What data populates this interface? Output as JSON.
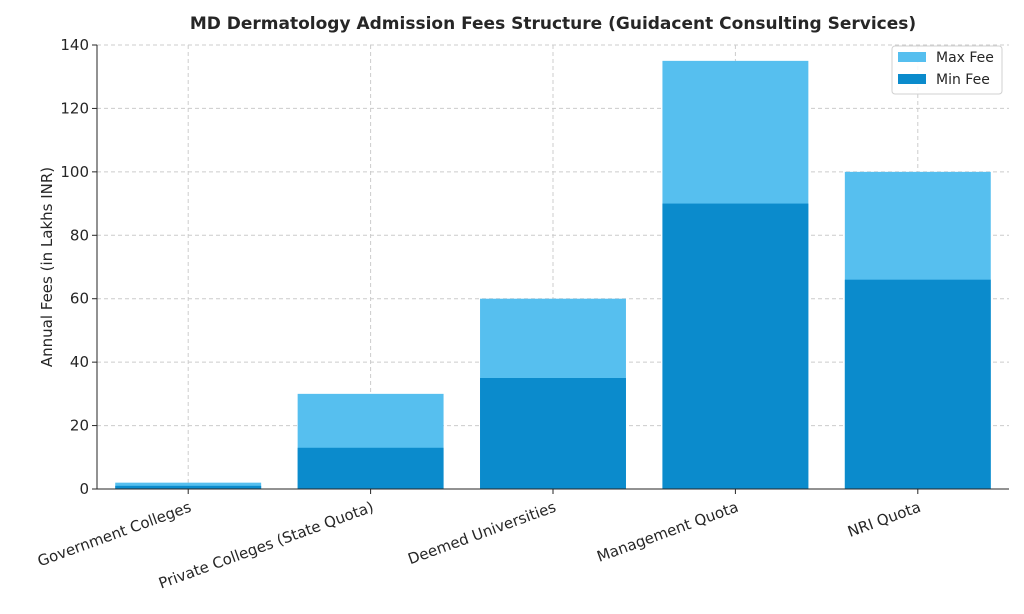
{
  "chart_data": {
    "type": "bar",
    "title": "MD Dermatology Admission Fees Structure (Guidacent Consulting Services)",
    "xlabel": "",
    "ylabel": "Annual Fees (in Lakhs INR)",
    "ylim": [
      0,
      140
    ],
    "yticks": [
      0,
      20,
      40,
      60,
      80,
      100,
      120,
      140
    ],
    "grid": true,
    "legend_position": "top-right",
    "categories": [
      "Government Colleges",
      "Private Colleges (State Quota)",
      "Deemed Universities",
      "Management Quota",
      "NRI Quota"
    ],
    "series": [
      {
        "name": "Max Fee",
        "color": "#56bfef",
        "values": [
          2,
          30,
          60,
          135,
          100
        ]
      },
      {
        "name": "Min Fee",
        "color": "#0b8bcc",
        "values": [
          1,
          13,
          35,
          90,
          66
        ]
      }
    ]
  }
}
